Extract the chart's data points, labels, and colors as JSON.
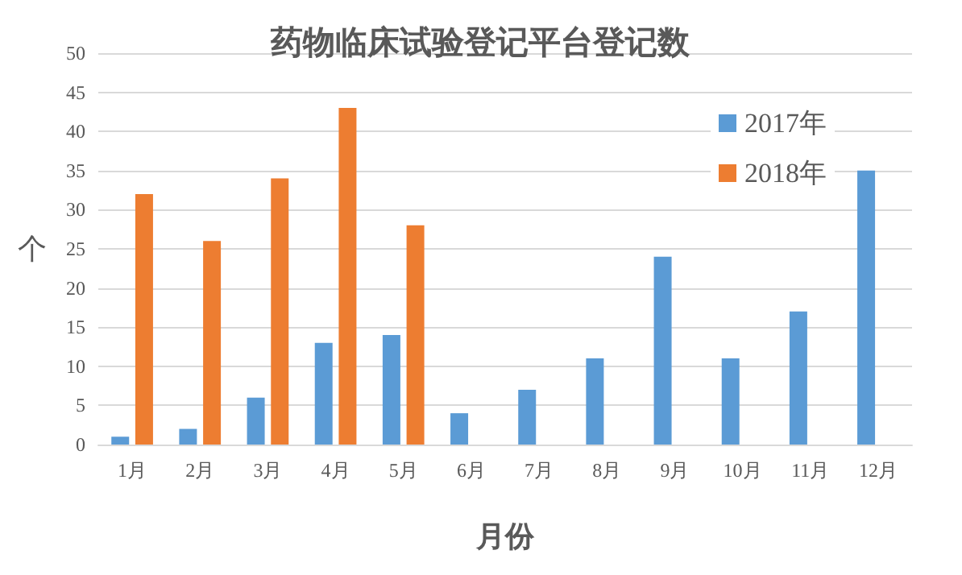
{
  "chart_data": {
    "type": "bar",
    "title": "药物临床试验登记平台登记数",
    "xlabel": "月份",
    "ylabel": "个",
    "categories": [
      "1月",
      "2月",
      "3月",
      "4月",
      "5月",
      "6月",
      "7月",
      "8月",
      "9月",
      "10月",
      "11月",
      "12月"
    ],
    "series": [
      {
        "name": "2017年",
        "color": "#5b9bd5",
        "values": [
          1,
          2,
          6,
          13,
          14,
          4,
          7,
          11,
          24,
          11,
          17,
          35
        ]
      },
      {
        "name": "2018年",
        "color": "#ed7d31",
        "values": [
          32,
          26,
          34,
          43,
          28,
          null,
          null,
          null,
          null,
          null,
          null,
          null
        ]
      }
    ],
    "ylim": [
      0,
      50
    ],
    "yticks": [
      0,
      5,
      10,
      15,
      20,
      25,
      30,
      35,
      40,
      45,
      50
    ],
    "grid": "y",
    "legend": "top right"
  }
}
